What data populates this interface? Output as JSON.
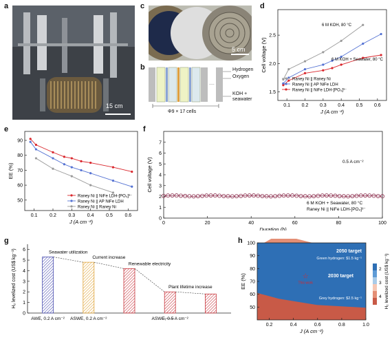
{
  "panels": {
    "a": {
      "letter": "a",
      "scale_label": "15 cm"
    },
    "b": {
      "letter": "b",
      "label_hydrogen": "Hydrogen",
      "label_oxygen": "Oxygen",
      "label_feed": "KOH +",
      "label_feed2": "seawater",
      "cells": "Φ9 × 17 cells",
      "dots": "...."
    },
    "c": {
      "letter": "c",
      "scale_label": "5 cm"
    },
    "d": {
      "letter": "d"
    },
    "e": {
      "letter": "e"
    },
    "f": {
      "letter": "f"
    },
    "g": {
      "letter": "g"
    },
    "h": {
      "letter": "h"
    }
  },
  "colors": {
    "red": "#d9262c",
    "blue": "#5472d3",
    "gray": "#9a9a9a",
    "purple": "#8a2a4a"
  },
  "chart_data": [
    {
      "id": "d",
      "type": "line",
      "xlabel": "J (A cm⁻²)",
      "ylabel": "Cell voltage (V)",
      "xlim": [
        0.05,
        0.65
      ],
      "ylim": [
        1.35,
        2.95
      ],
      "xticks": [
        "0.1",
        "0.2",
        "0.3",
        "0.4",
        "0.5",
        "0.6"
      ],
      "yticks": [
        "1.5",
        "2.0",
        "2.5"
      ],
      "annotations": [
        "6 M KOH, 80 °C",
        "6 M KOH + Seawater, 80 °C"
      ],
      "series": [
        {
          "name": "Raney Ni || Raney Ni",
          "color": "#9a9a9a",
          "x": [
            0.08,
            0.11,
            0.2,
            0.3,
            0.4,
            0.52
          ],
          "y": [
            1.72,
            1.9,
            2.04,
            2.2,
            2.4,
            2.68
          ]
        },
        {
          "name": "Raney Ni || AP NiFe LDH",
          "color": "#5472d3",
          "x": [
            0.08,
            0.11,
            0.2,
            0.3,
            0.35,
            0.4,
            0.52,
            0.62
          ],
          "y": [
            1.65,
            1.75,
            1.9,
            1.98,
            2.05,
            2.12,
            2.35,
            2.52
          ]
        },
        {
          "name": "Raney Ni || NiFe LDH-[PO₄]³⁻",
          "color": "#d9262c",
          "x": [
            0.08,
            0.11,
            0.2,
            0.3,
            0.35,
            0.4,
            0.52,
            0.62
          ],
          "y": [
            1.62,
            1.7,
            1.83,
            1.88,
            1.92,
            1.98,
            2.1,
            2.15
          ]
        }
      ]
    },
    {
      "id": "e",
      "type": "line",
      "xlabel": "J (A cm⁻²)",
      "ylabel": "EE (%)",
      "xlim": [
        0.05,
        0.65
      ],
      "ylim": [
        43,
        96
      ],
      "xticks": [
        "0.1",
        "0.2",
        "0.3",
        "0.4",
        "0.5",
        "0.6"
      ],
      "yticks": [
        "50",
        "60",
        "70",
        "80",
        "90"
      ],
      "series": [
        {
          "name": "Raney Ni || NiFe LDH-[PO₄]³⁻",
          "color": "#d9262c",
          "x": [
            0.08,
            0.11,
            0.2,
            0.26,
            0.3,
            0.35,
            0.4,
            0.52,
            0.62
          ],
          "y": [
            91,
            87,
            82,
            79,
            78,
            76,
            75,
            72,
            69
          ]
        },
        {
          "name": "Raney Ni || AP NiFe LDH",
          "color": "#5472d3",
          "x": [
            0.08,
            0.11,
            0.2,
            0.26,
            0.3,
            0.35,
            0.4,
            0.52,
            0.62
          ],
          "y": [
            89,
            84,
            78,
            74,
            72,
            70,
            68,
            63,
            59
          ]
        },
        {
          "name": "Raney Ni || Raney Ni",
          "color": "#9a9a9a",
          "x": [
            0.11,
            0.2,
            0.3,
            0.4,
            0.52
          ],
          "y": [
            78,
            71,
            66,
            60,
            55
          ]
        }
      ]
    },
    {
      "id": "f",
      "type": "line",
      "xlabel": "Duration (h)",
      "ylabel": "Cell voltage (V)",
      "xlim": [
        0,
        100
      ],
      "ylim": [
        0,
        8
      ],
      "xticks": [
        "0",
        "20",
        "40",
        "60",
        "80",
        "100"
      ],
      "yticks": [
        "0",
        "1",
        "2",
        "3",
        "4",
        "5",
        "6",
        "7"
      ],
      "annotations": [
        "0.5 A cm⁻²",
        "6 M KOH + Seawater, 80 °C",
        "Raney Ni || NiFe LDH-[PO₄]³⁻"
      ],
      "series": [
        {
          "name": "Raney Ni || NiFe LDH-[PO₄]³⁻",
          "color": "#8a2a4a",
          "value": 2.05,
          "x_start": 0,
          "x_end": 100,
          "n": 52
        }
      ]
    },
    {
      "id": "g",
      "type": "bar",
      "ylabel": "H₂ levelized cost (US$ kg⁻¹)",
      "ylim": [
        0,
        6.5
      ],
      "yticks": [
        "0",
        "1",
        "2",
        "3",
        "4",
        "5",
        "6"
      ],
      "categories": [
        "AWE, 0.2 A cm⁻²",
        "ASWE, 0.2 A cm⁻²",
        "",
        "ASWE, 0.5 A cm⁻²",
        ""
      ],
      "values": [
        5.3,
        4.8,
        4.2,
        2.0,
        1.8
      ],
      "bar_colors": [
        "#4b4fb0",
        "#e0a53b",
        "#c8373e",
        "#c8373e",
        "#c8373e"
      ],
      "annotations": [
        "Seawater utilization",
        "Current increase",
        "Renewable electricity",
        "Plant lifetime increase"
      ]
    },
    {
      "id": "h",
      "type": "heatmap",
      "xlabel": "J (A cm⁻²)",
      "ylabel": "EE (%)",
      "colorbar_label": "H₂ levelized cost (US$ kg⁻¹)",
      "xlim": [
        0.1,
        1.0
      ],
      "ylim": [
        40,
        100
      ],
      "xticks": [
        "0.2",
        "0.4",
        "0.6",
        "0.8",
        "1.0"
      ],
      "yticks": [
        "50",
        "60",
        "70",
        "80",
        "90",
        "100"
      ],
      "colorbar_ticks": [
        "2",
        "3",
        "4"
      ],
      "annotations": [
        "2050 target",
        "Green hydrogen: $1.5 kg⁻¹",
        "2030 target",
        "This work",
        "Grey hydrogen: $2.5 kg⁻¹"
      ],
      "marker": {
        "label": "This work",
        "x": 0.5,
        "y": 74
      }
    }
  ]
}
